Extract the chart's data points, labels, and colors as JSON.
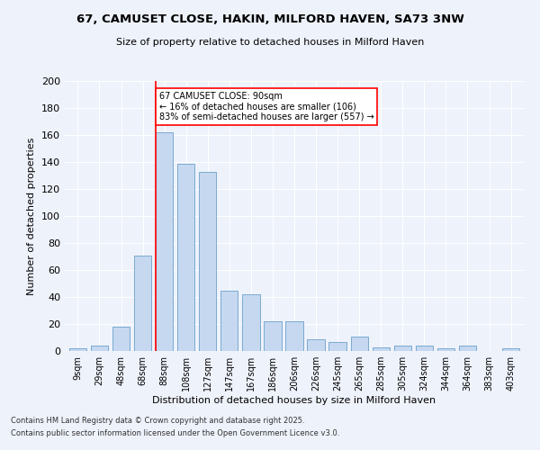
{
  "title": "67, CAMUSET CLOSE, HAKIN, MILFORD HAVEN, SA73 3NW",
  "subtitle": "Size of property relative to detached houses in Milford Haven",
  "xlabel": "Distribution of detached houses by size in Milford Haven",
  "ylabel": "Number of detached properties",
  "bar_color": "#c5d8f0",
  "bar_edge_color": "#7aaad0",
  "background_color": "#eef2fb",
  "grid_color": "#ffffff",
  "categories": [
    "9sqm",
    "29sqm",
    "48sqm",
    "68sqm",
    "88sqm",
    "108sqm",
    "127sqm",
    "147sqm",
    "167sqm",
    "186sqm",
    "206sqm",
    "226sqm",
    "245sqm",
    "265sqm",
    "285sqm",
    "305sqm",
    "324sqm",
    "344sqm",
    "364sqm",
    "383sqm",
    "403sqm"
  ],
  "values": [
    2,
    4,
    18,
    71,
    162,
    139,
    133,
    45,
    42,
    22,
    22,
    9,
    7,
    11,
    3,
    4,
    4,
    2,
    4,
    0,
    2
  ],
  "ylim": [
    0,
    200
  ],
  "yticks": [
    0,
    20,
    40,
    60,
    80,
    100,
    120,
    140,
    160,
    180,
    200
  ],
  "property_label": "67 CAMUSET CLOSE: 90sqm",
  "pct_smaller": "16% of detached houses are smaller (106)",
  "pct_larger": "83% of semi-detached houses are larger (557)",
  "marker_bar_index": 4,
  "footnote1": "Contains HM Land Registry data © Crown copyright and database right 2025.",
  "footnote2": "Contains public sector information licensed under the Open Government Licence v3.0."
}
